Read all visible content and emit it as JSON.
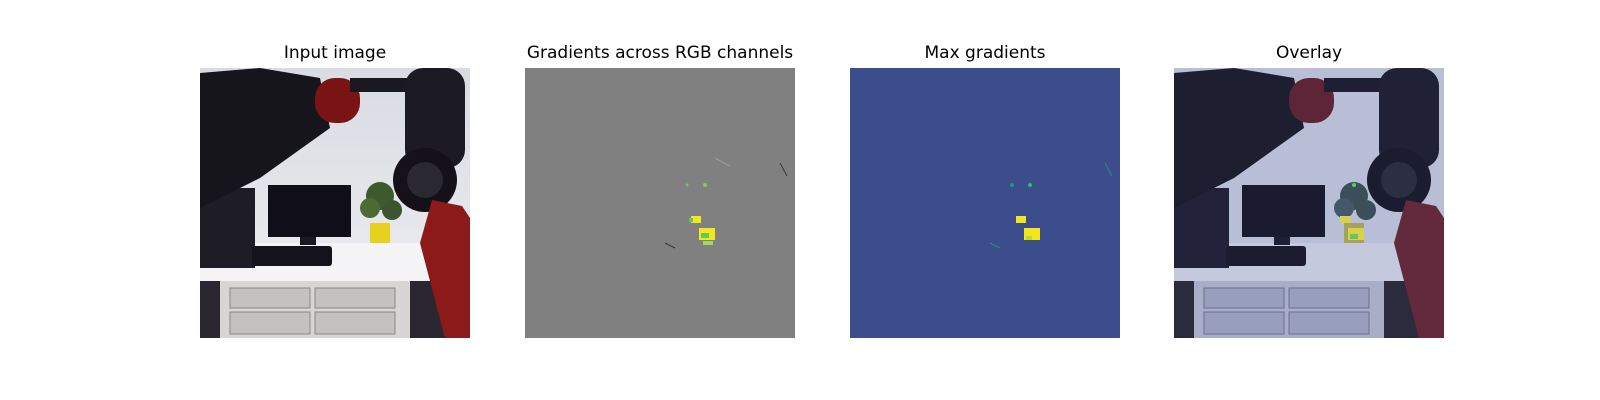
{
  "figure": {
    "panels": [
      {
        "title": "Input image"
      },
      {
        "title": "Gradients across RGB channels"
      },
      {
        "title": "Max gradients"
      },
      {
        "title": "Overlay"
      }
    ]
  },
  "colors": {
    "gradient_background": "#808080",
    "max_gradient_background": "#3b4d8a",
    "highlight_yellow": "#f4e61c",
    "highlight_green": "#5ec962",
    "overlay_tint": "#5a6aa8"
  }
}
